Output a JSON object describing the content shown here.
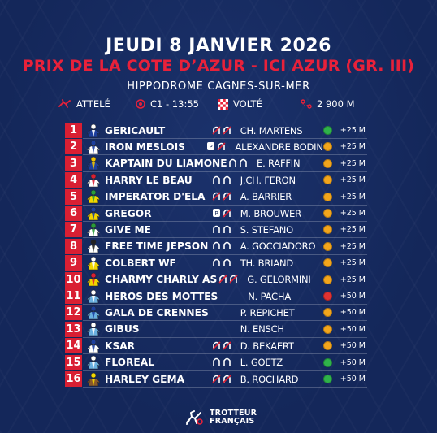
{
  "header": {
    "date": "JEUDI 8 JANVIER 2026",
    "race_name": "PRIX DE LA COTE D’AZUR - ICI AZUR (GR. III)",
    "venue": "HIPPODROME CAGNES-SUR-MER"
  },
  "info": {
    "discipline": "ATTELÉ",
    "race_time": "C1 - 13:55",
    "start": "VOLTÉ",
    "distance": "2 900 M"
  },
  "colors": {
    "background": "#14275a",
    "accent_red": "#e8213a",
    "badge_red": "#d91f33",
    "dot_green": "#2fb24a",
    "dot_orange": "#f2a51c",
    "dot_red": "#e03232"
  },
  "runners": [
    {
      "num": "1",
      "name": "GERICAULT",
      "shoes": "full",
      "driver": "CH. MARTENS",
      "status": "green",
      "dist": "+25 M"
    },
    {
      "num": "2",
      "name": "IRON MESLOIS",
      "shoes": "front",
      "driver": "ALEXANDRE BODIN",
      "status": "orange",
      "dist": "+25 M"
    },
    {
      "num": "3",
      "name": "KAPTAIN DU LIAMONE",
      "shoes": "open",
      "driver": "E. RAFFIN",
      "status": "orange",
      "dist": "+25 M"
    },
    {
      "num": "4",
      "name": "HARRY LE BEAU",
      "shoes": "open",
      "driver": "J.CH. FERON",
      "status": "orange",
      "dist": "+25 M"
    },
    {
      "num": "5",
      "name": "IMPERATOR D'ELA",
      "shoes": "full",
      "driver": "A. BARRIER",
      "status": "orange",
      "dist": "+25 M"
    },
    {
      "num": "6",
      "name": "GREGOR",
      "shoes": "front",
      "driver": "M. BROUWER",
      "status": "orange",
      "dist": "+25 M"
    },
    {
      "num": "7",
      "name": "GIVE ME",
      "shoes": "open",
      "driver": "S. STEFANO",
      "status": "orange",
      "dist": "+25 M"
    },
    {
      "num": "8",
      "name": "FREE TIME JEPSON",
      "shoes": "open",
      "driver": "A. GOCCIADORO",
      "status": "orange",
      "dist": "+25 M"
    },
    {
      "num": "9",
      "name": "COLBERT WF",
      "shoes": "open",
      "driver": "TH. BRIAND",
      "status": "orange",
      "dist": "+25 M"
    },
    {
      "num": "10",
      "name": "CHARMY CHARLY AS",
      "shoes": "full",
      "driver": "G. GELORMINI",
      "status": "orange",
      "dist": "+25 M"
    },
    {
      "num": "11",
      "name": "HEROS DES MOTTES",
      "shoes": "none",
      "driver": "N. PACHA",
      "status": "red",
      "dist": "+50 M"
    },
    {
      "num": "12",
      "name": "GALA DE CRENNES",
      "shoes": "none",
      "driver": "P. REPICHET",
      "status": "orange",
      "dist": "+50 M"
    },
    {
      "num": "13",
      "name": "GIBUS",
      "shoes": "none",
      "driver": "N. ENSCH",
      "status": "orange",
      "dist": "+50 M"
    },
    {
      "num": "14",
      "name": "KSAR",
      "shoes": "full",
      "driver": "D. BEKAERT",
      "status": "orange",
      "dist": "+50 M"
    },
    {
      "num": "15",
      "name": "FLOREAL",
      "shoes": "open",
      "driver": "L. GOETZ",
      "status": "green",
      "dist": "+50 M"
    },
    {
      "num": "16",
      "name": "HARLEY GEMA",
      "shoes": "full",
      "driver": "B. ROCHARD",
      "status": "green",
      "dist": "+50 M"
    }
  ],
  "brand": {
    "line1": "TROTTEUR",
    "line2": "FRANÇAIS"
  }
}
